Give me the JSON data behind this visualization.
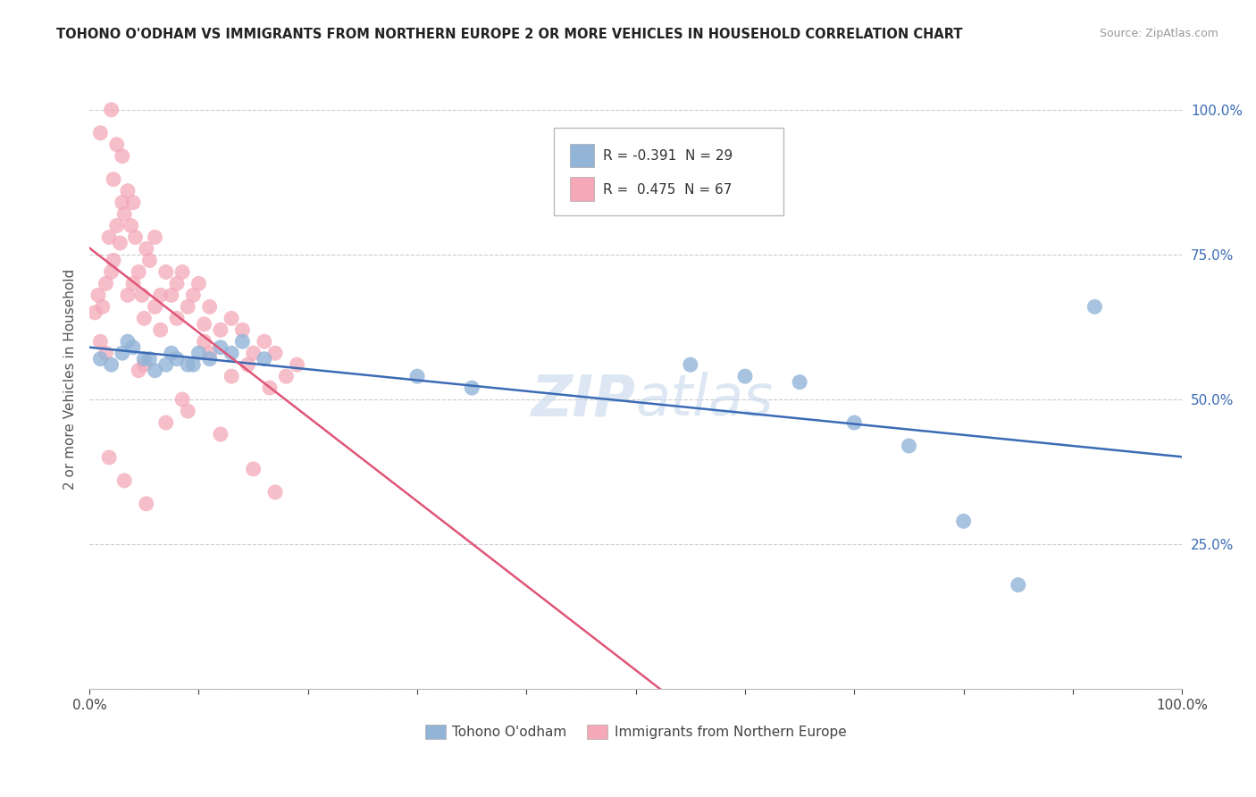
{
  "title": "TOHONO O'ODHAM VS IMMIGRANTS FROM NORTHERN EUROPE 2 OR MORE VEHICLES IN HOUSEHOLD CORRELATION CHART",
  "source": "Source: ZipAtlas.com",
  "ylabel": "2 or more Vehicles in Household",
  "legend_blue_label": "Tohono O'odham",
  "legend_pink_label": "Immigrants from Northern Europe",
  "blue_R": -0.391,
  "blue_N": 29,
  "pink_R": 0.475,
  "pink_N": 67,
  "blue_color": "#92B4D7",
  "pink_color": "#F4A8B8",
  "blue_line_color": "#3B6BB5",
  "pink_line_color": "#E05577",
  "watermark": "ZIPatlas",
  "blue_points_x": [
    1.0,
    2.0,
    3.0,
    4.0,
    5.0,
    6.0,
    7.0,
    8.0,
    9.0,
    10.0,
    11.0,
    12.0,
    13.0,
    3.5,
    5.5,
    7.5,
    9.5,
    14.0,
    16.0,
    30.0,
    35.0,
    55.0,
    60.0,
    65.0,
    70.0,
    75.0,
    80.0,
    85.0,
    92.0
  ],
  "blue_points_y": [
    57.0,
    56.0,
    58.0,
    59.0,
    57.0,
    55.0,
    56.0,
    57.0,
    56.0,
    58.0,
    57.0,
    59.0,
    58.0,
    60.0,
    57.0,
    58.0,
    56.0,
    60.0,
    57.0,
    54.0,
    52.0,
    56.0,
    54.0,
    53.0,
    46.0,
    42.0,
    29.0,
    18.0,
    66.0
  ],
  "pink_points_x": [
    0.5,
    0.8,
    1.0,
    1.2,
    1.5,
    1.8,
    2.0,
    2.2,
    2.5,
    2.8,
    3.0,
    3.2,
    3.5,
    3.8,
    4.0,
    4.2,
    4.5,
    4.8,
    5.0,
    5.2,
    5.5,
    6.0,
    6.5,
    7.0,
    7.5,
    8.0,
    8.5,
    9.0,
    9.5,
    10.0,
    10.5,
    11.0,
    12.0,
    13.0,
    14.0,
    15.0,
    16.0,
    17.0,
    18.0,
    19.0,
    1.0,
    2.0,
    2.5,
    3.0,
    4.0,
    5.0,
    7.0,
    9.0,
    11.0,
    13.0,
    15.0,
    17.0,
    1.5,
    3.5,
    6.0,
    8.0,
    10.5,
    14.5,
    16.5,
    2.2,
    4.5,
    6.5,
    8.5,
    12.0,
    1.8,
    3.2,
    5.2
  ],
  "pink_points_y": [
    65.0,
    68.0,
    60.0,
    66.0,
    70.0,
    78.0,
    72.0,
    74.0,
    80.0,
    77.0,
    84.0,
    82.0,
    86.0,
    80.0,
    70.0,
    78.0,
    72.0,
    68.0,
    64.0,
    76.0,
    74.0,
    66.0,
    68.0,
    72.0,
    68.0,
    70.0,
    72.0,
    66.0,
    68.0,
    70.0,
    63.0,
    66.0,
    62.0,
    64.0,
    62.0,
    58.0,
    60.0,
    58.0,
    54.0,
    56.0,
    96.0,
    100.0,
    94.0,
    92.0,
    84.0,
    56.0,
    46.0,
    48.0,
    58.0,
    54.0,
    38.0,
    34.0,
    58.0,
    68.0,
    78.0,
    64.0,
    60.0,
    56.0,
    52.0,
    88.0,
    55.0,
    62.0,
    50.0,
    44.0,
    40.0,
    36.0,
    32.0
  ]
}
